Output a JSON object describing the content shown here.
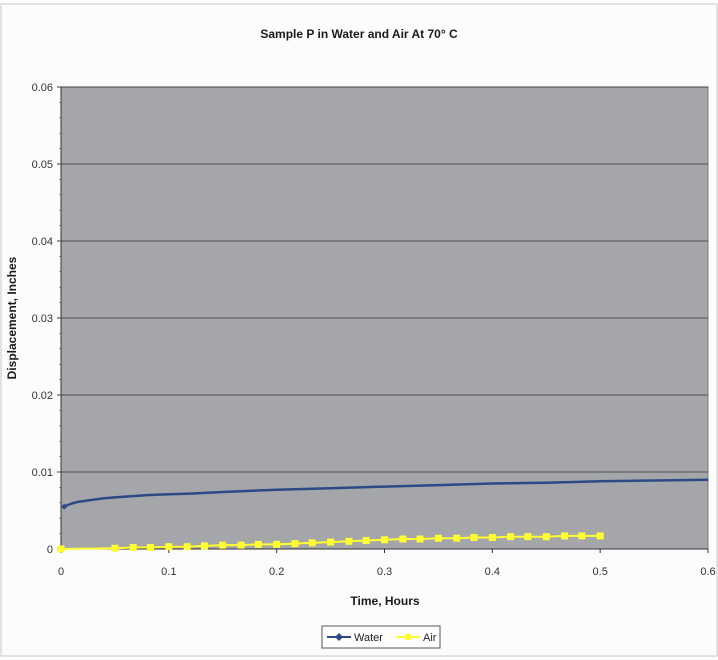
{
  "chart_data": {
    "type": "line",
    "title": "Sample P in Water and Air At 70° C",
    "xlabel": "Time, Hours",
    "ylabel": "Displacement, Inches",
    "xlim": [
      0,
      0.6
    ],
    "ylim": [
      0,
      0.06
    ],
    "x_ticks": [
      "0",
      "0.1",
      "0.2",
      "0.3",
      "0.4",
      "0.5",
      "0.6"
    ],
    "y_ticks": [
      "0",
      "0.01",
      "0.02",
      "0.03",
      "0.04",
      "0.05",
      "0.06"
    ],
    "grid": "horizontal",
    "legend_position": "bottom",
    "series": [
      {
        "name": "Water",
        "color": "#2b4a86",
        "marker": "diamond",
        "x": [
          0.003,
          0.006,
          0.01,
          0.015,
          0.02,
          0.03,
          0.04,
          0.05,
          0.06,
          0.08,
          0.1,
          0.12,
          0.15,
          0.2,
          0.25,
          0.3,
          0.35,
          0.4,
          0.45,
          0.5,
          0.55,
          0.6
        ],
        "y": [
          0.0055,
          0.0057,
          0.0059,
          0.0061,
          0.0062,
          0.0064,
          0.0066,
          0.0067,
          0.0068,
          0.007,
          0.0071,
          0.0072,
          0.0074,
          0.0077,
          0.0079,
          0.0081,
          0.0083,
          0.0085,
          0.0086,
          0.0088,
          0.0089,
          0.009
        ]
      },
      {
        "name": "Air",
        "color": "#ffff33",
        "marker": "square",
        "x": [
          0.0,
          0.05,
          0.067,
          0.083,
          0.1,
          0.117,
          0.133,
          0.15,
          0.167,
          0.183,
          0.2,
          0.217,
          0.233,
          0.25,
          0.267,
          0.283,
          0.3,
          0.317,
          0.333,
          0.35,
          0.367,
          0.383,
          0.4,
          0.417,
          0.433,
          0.45,
          0.467,
          0.483,
          0.5
        ],
        "y": [
          0.0,
          0.0001,
          0.0002,
          0.0002,
          0.0003,
          0.0003,
          0.0004,
          0.0005,
          0.0005,
          0.0006,
          0.0006,
          0.0007,
          0.0008,
          0.0009,
          0.001,
          0.0011,
          0.0012,
          0.0013,
          0.0013,
          0.0014,
          0.0014,
          0.0015,
          0.0015,
          0.0016,
          0.0016,
          0.0016,
          0.0017,
          0.0017,
          0.0017
        ]
      }
    ]
  }
}
